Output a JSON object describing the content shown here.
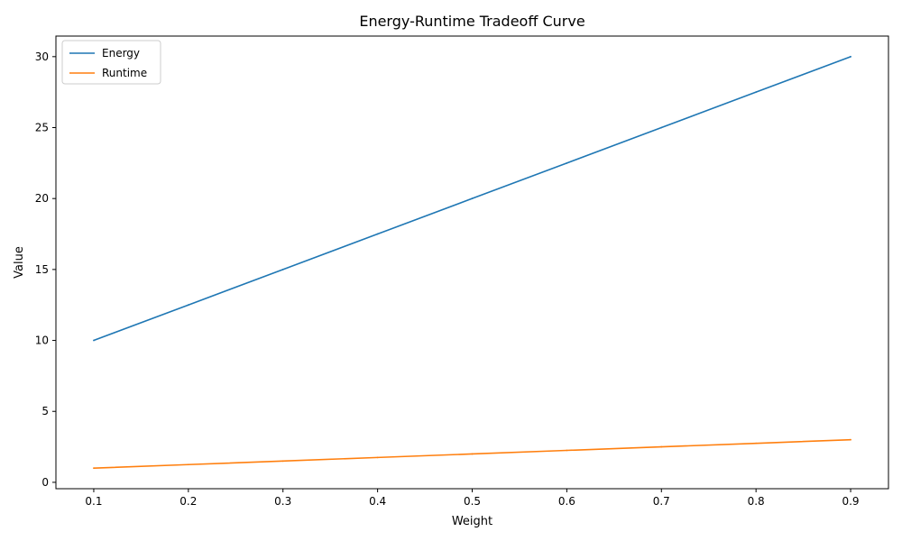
{
  "chart_data": {
    "type": "line",
    "title": "Energy-Runtime Tradeoff Curve",
    "xlabel": "Weight",
    "ylabel": "Value",
    "x": [
      0.1,
      0.2,
      0.3,
      0.4,
      0.5,
      0.6,
      0.7,
      0.8,
      0.9
    ],
    "xlim": [
      0.06,
      0.94
    ],
    "ylim": [
      -0.45,
      31.45
    ],
    "xticks": [
      0.1,
      0.2,
      0.3,
      0.4,
      0.5,
      0.6,
      0.7,
      0.8,
      0.9
    ],
    "yticks": [
      0,
      5,
      10,
      15,
      20,
      25,
      30
    ],
    "grid": false,
    "legend_position": "upper-left",
    "series": [
      {
        "name": "Energy",
        "color": "#1f77b4",
        "values": [
          10,
          12.5,
          15,
          17.5,
          20,
          22.5,
          25,
          27.5,
          30
        ]
      },
      {
        "name": "Runtime",
        "color": "#ff7f0e",
        "values": [
          1.0,
          1.25,
          1.5,
          1.75,
          2.0,
          2.25,
          2.5,
          2.75,
          3.0
        ]
      }
    ]
  }
}
